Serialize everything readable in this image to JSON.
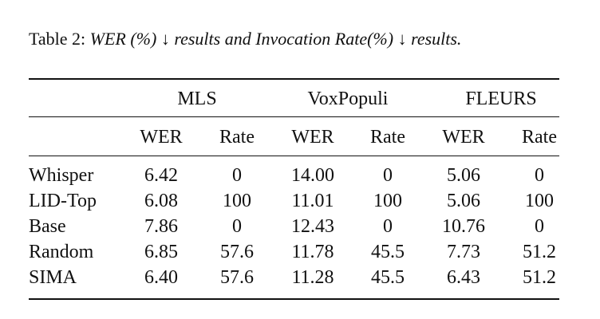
{
  "caption": {
    "label": "Table 2:",
    "text": "WER (%) ↓ results and Invocation Rate(%) ↓ results."
  },
  "groups": [
    "MLS",
    "VoxPopuli",
    "FLEURS"
  ],
  "subheaders": [
    "WER",
    "Rate",
    "WER",
    "Rate",
    "WER",
    "Rate"
  ],
  "rows": [
    {
      "name": "Whisper",
      "values": [
        "6.42",
        "0",
        "14.00",
        "0",
        "5.06",
        "0"
      ]
    },
    {
      "name": "LID-Top",
      "values": [
        "6.08",
        "100",
        "11.01",
        "100",
        "5.06",
        "100"
      ]
    },
    {
      "name": "Base",
      "values": [
        "7.86",
        "0",
        "12.43",
        "0",
        "10.76",
        "0"
      ]
    },
    {
      "name": "Random",
      "values": [
        "6.85",
        "57.6",
        "11.78",
        "45.5",
        "7.73",
        "51.2"
      ]
    },
    {
      "name": "SIMA",
      "values": [
        "6.40",
        "57.6",
        "11.28",
        "45.5",
        "6.43",
        "51.2"
      ]
    }
  ]
}
